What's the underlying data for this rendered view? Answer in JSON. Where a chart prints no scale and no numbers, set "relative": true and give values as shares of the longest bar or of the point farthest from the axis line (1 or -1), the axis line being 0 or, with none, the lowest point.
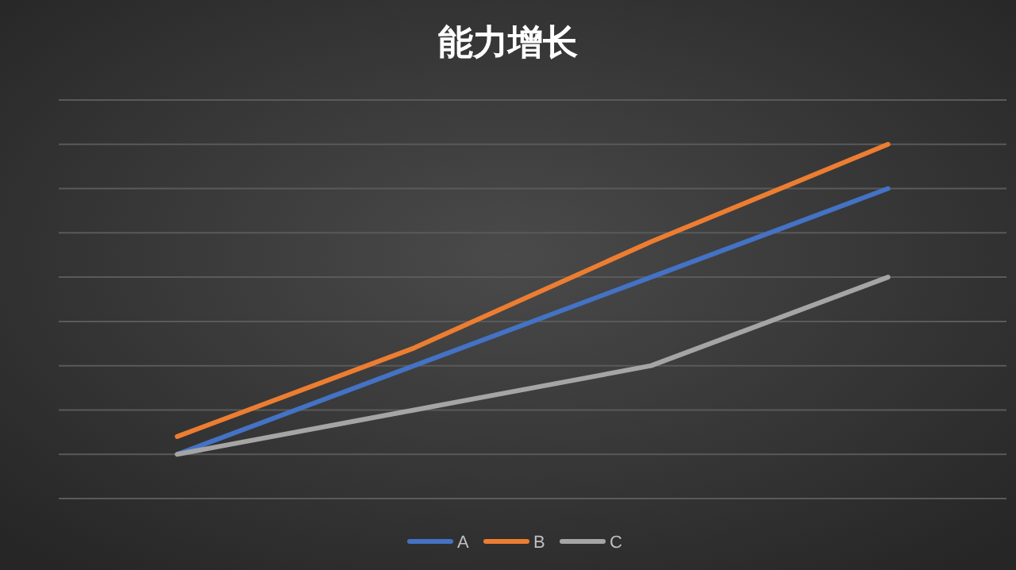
{
  "chart_data": {
    "type": "line",
    "title": "能力增长",
    "relative": true,
    "grid": "y",
    "legend": "bottom",
    "marker": "none",
    "line_style": "solid",
    "categories": [
      null,
      null,
      null,
      null
    ],
    "series": [
      {
        "name": "A",
        "color": "#4472c4",
        "values": [
          0.125,
          0.375,
          0.625,
          0.875
        ]
      },
      {
        "name": "B",
        "color": "#ed7d31",
        "values": [
          0.175,
          0.425,
          0.725,
          1
        ]
      },
      {
        "name": "C",
        "color": "#a5a5a5",
        "values": [
          0.125,
          0.25,
          0.375,
          0.625
        ]
      }
    ]
  }
}
